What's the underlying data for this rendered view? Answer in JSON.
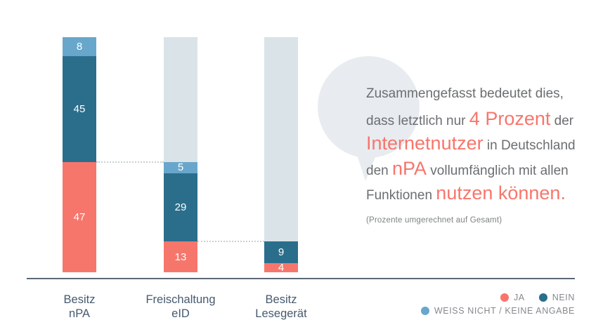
{
  "chart_data": {
    "type": "bar",
    "stacked": true,
    "unit": "percent",
    "ylim": [
      0,
      100
    ],
    "grid": false,
    "legend_position": "bottom-right",
    "categories": [
      {
        "line1": "Besitz",
        "line2": "nPA"
      },
      {
        "line1": "Freischaltung",
        "line2": "eID"
      },
      {
        "line1": "Besitz",
        "line2": "Lesegerät"
      }
    ],
    "series": [
      {
        "name": "JA",
        "color": "#F7766C",
        "values": [
          47,
          13,
          4
        ]
      },
      {
        "name": "NEIN",
        "color": "#2B6E8C",
        "values": [
          45,
          29,
          9
        ]
      },
      {
        "name": "WEISS NICHT / KEINE ANGABE",
        "color": "#68A7CB",
        "values": [
          8,
          5,
          null
        ]
      }
    ],
    "remainder_color": "#DAE3E8",
    "connector_levels": [
      47,
      13
    ],
    "axis_line_color": "#5C6774"
  },
  "bubble": {
    "lines": [
      [
        {
          "t": "Zusammengefasst bedeutet dies,",
          "s": "g"
        }
      ],
      [
        {
          "t": "dass letztlich nur ",
          "s": "g"
        },
        {
          "t": "4 Prozent",
          "s": "r"
        },
        {
          "t": " der",
          "s": "g"
        }
      ],
      [
        {
          "t": "Internetnutzer",
          "s": "r"
        },
        {
          "t": " in Deutschland",
          "s": "g"
        }
      ],
      [
        {
          "t": "den ",
          "s": "g"
        },
        {
          "t": "nPA",
          "s": "r"
        },
        {
          "t": " vollumfänglich mit allen",
          "s": "g"
        }
      ],
      [
        {
          "t": "Funktionen ",
          "s": "g"
        },
        {
          "t": "nutzen können.",
          "s": "r"
        }
      ]
    ],
    "note": "(Prozente umgerechnet auf Gesamt)",
    "background_color": "#E8ECF0"
  }
}
